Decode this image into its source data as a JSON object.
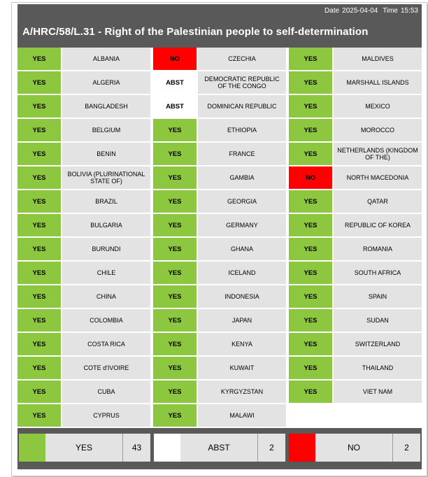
{
  "header": {
    "date_label": "Date",
    "date": "2025-04-04",
    "time_label": "Time",
    "time": "15:53",
    "title": "A/HRC/58/L.31 - Right of the Palestinian people to self-determination"
  },
  "colors": {
    "yes": "#8dc63f",
    "no": "#ff0000",
    "abst": "#ffffff",
    "panel": "#595959",
    "cell": "#e3e3e3"
  },
  "columns": [
    [
      {
        "vote": "YES",
        "country": "ALBANIA"
      },
      {
        "vote": "YES",
        "country": "ALGERIA"
      },
      {
        "vote": "YES",
        "country": "BANGLADESH"
      },
      {
        "vote": "YES",
        "country": "BELGIUM"
      },
      {
        "vote": "YES",
        "country": "BENIN"
      },
      {
        "vote": "YES",
        "country": "BOLIVIA (PLURINATIONAL STATE OF)"
      },
      {
        "vote": "YES",
        "country": "BRAZIL"
      },
      {
        "vote": "YES",
        "country": "BULGARIA"
      },
      {
        "vote": "YES",
        "country": "BURUNDI"
      },
      {
        "vote": "YES",
        "country": "CHILE"
      },
      {
        "vote": "YES",
        "country": "CHINA"
      },
      {
        "vote": "YES",
        "country": "COLOMBIA"
      },
      {
        "vote": "YES",
        "country": "COSTA RICA"
      },
      {
        "vote": "YES",
        "country": "COTE d'IVOIRE"
      },
      {
        "vote": "YES",
        "country": "CUBA"
      },
      {
        "vote": "YES",
        "country": "CYPRUS"
      }
    ],
    [
      {
        "vote": "NO",
        "country": "CZECHIA"
      },
      {
        "vote": "ABST",
        "country": "DEMOCRATIC REPUBLIC OF THE CONGO"
      },
      {
        "vote": "ABST",
        "country": "DOMINICAN REPUBLIC"
      },
      {
        "vote": "YES",
        "country": "ETHIOPIA"
      },
      {
        "vote": "YES",
        "country": "FRANCE"
      },
      {
        "vote": "YES",
        "country": "GAMBIA"
      },
      {
        "vote": "YES",
        "country": "GEORGIA"
      },
      {
        "vote": "YES",
        "country": "GERMANY"
      },
      {
        "vote": "YES",
        "country": "GHANA"
      },
      {
        "vote": "YES",
        "country": "ICELAND"
      },
      {
        "vote": "YES",
        "country": "INDONESIA"
      },
      {
        "vote": "YES",
        "country": "JAPAN"
      },
      {
        "vote": "YES",
        "country": "KENYA"
      },
      {
        "vote": "YES",
        "country": "KUWAIT"
      },
      {
        "vote": "YES",
        "country": "KYRGYZSTAN"
      },
      {
        "vote": "YES",
        "country": "MALAWI"
      }
    ],
    [
      {
        "vote": "YES",
        "country": "MALDIVES"
      },
      {
        "vote": "YES",
        "country": "MARSHALL ISLANDS"
      },
      {
        "vote": "YES",
        "country": "MEXICO"
      },
      {
        "vote": "YES",
        "country": "MOROCCO"
      },
      {
        "vote": "YES",
        "country": "NETHERLANDS (KINGDOM OF THE)"
      },
      {
        "vote": "NO",
        "country": "NORTH MACEDONIA"
      },
      {
        "vote": "YES",
        "country": "QATAR"
      },
      {
        "vote": "YES",
        "country": "REPUBLIC OF KOREA"
      },
      {
        "vote": "YES",
        "country": "ROMANIA"
      },
      {
        "vote": "YES",
        "country": "SOUTH AFRICA"
      },
      {
        "vote": "YES",
        "country": "SPAIN"
      },
      {
        "vote": "YES",
        "country": "SUDAN"
      },
      {
        "vote": "YES",
        "country": "SWITZERLAND"
      },
      {
        "vote": "YES",
        "country": "THAILAND"
      },
      {
        "vote": "YES",
        "country": "VIET NAM"
      }
    ]
  ],
  "totals": {
    "yes": {
      "label": "YES",
      "count": "43"
    },
    "abst": {
      "label": "ABST",
      "count": "2"
    },
    "no": {
      "label": "NO",
      "count": "2"
    }
  }
}
